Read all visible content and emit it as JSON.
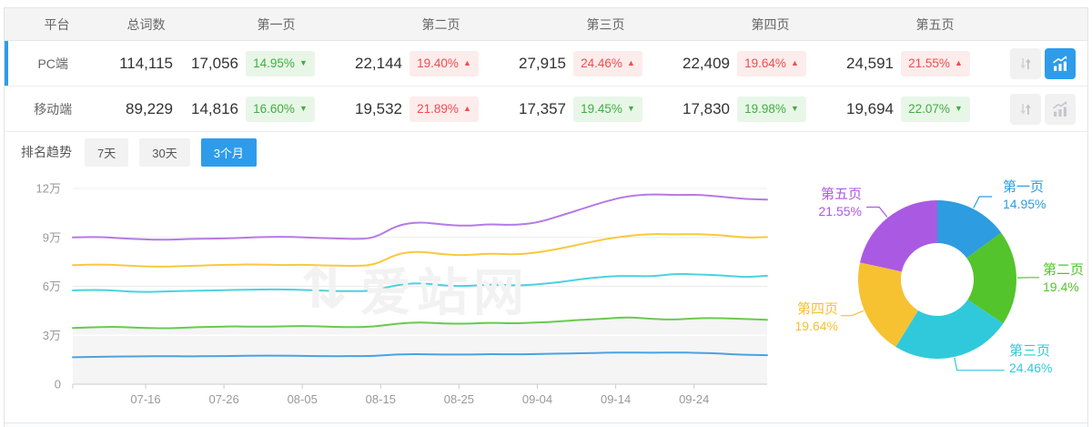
{
  "accent": "#2e9cea",
  "watermark": "爱站网",
  "table": {
    "columns": [
      "平台",
      "总词数",
      "第一页",
      "第二页",
      "第三页",
      "第四页",
      "第五页"
    ],
    "rows": [
      {
        "platform": "PC端",
        "total": "114,115",
        "selected": true,
        "pages": [
          {
            "count": "17,056",
            "pct": "14.95%",
            "dir": "down"
          },
          {
            "count": "22,144",
            "pct": "19.40%",
            "dir": "up"
          },
          {
            "count": "27,915",
            "pct": "24.46%",
            "dir": "up"
          },
          {
            "count": "22,409",
            "pct": "19.64%",
            "dir": "up"
          },
          {
            "count": "24,591",
            "pct": "21.55%",
            "dir": "up"
          }
        ],
        "sort_active": false,
        "chart_active": true
      },
      {
        "platform": "移动端",
        "total": "89,229",
        "selected": false,
        "pages": [
          {
            "count": "14,816",
            "pct": "16.60%",
            "dir": "down"
          },
          {
            "count": "19,532",
            "pct": "21.89%",
            "dir": "up"
          },
          {
            "count": "17,357",
            "pct": "19.45%",
            "dir": "down"
          },
          {
            "count": "17,830",
            "pct": "19.98%",
            "dir": "down"
          },
          {
            "count": "19,694",
            "pct": "22.07%",
            "dir": "down"
          }
        ],
        "sort_active": false,
        "chart_active": false
      }
    ]
  },
  "trend": {
    "label": "排名趋势",
    "tabs": [
      {
        "label": "7天",
        "active": false
      },
      {
        "label": "30天",
        "active": false
      },
      {
        "label": "3个月",
        "active": true
      }
    ]
  },
  "chart_data": [
    {
      "type": "line",
      "title": "排名趋势（3个月）",
      "x_labels": [
        "07-16",
        "07-26",
        "08-05",
        "08-15",
        "08-25",
        "09-04",
        "09-14",
        "09-24"
      ],
      "y_ticks": [
        {
          "label": "0",
          "value": 0
        },
        {
          "label": "3万",
          "value": 3
        },
        {
          "label": "6万",
          "value": 6
        },
        {
          "label": "9万",
          "value": 9
        },
        {
          "label": "12万",
          "value": 12
        }
      ],
      "y_unit": "万",
      "ylim": [
        0,
        12
      ],
      "grid": true,
      "legend": "none",
      "series": [
        {
          "name": "line-1-purple",
          "color": "#b57ae6",
          "values": [
            9.0,
            9.05,
            8.95,
            8.88,
            8.85,
            8.9,
            8.92,
            8.95,
            9.02,
            9.05,
            9.0,
            8.95,
            8.9,
            8.92,
            9.75,
            9.95,
            9.78,
            9.7,
            9.82,
            9.75,
            9.88,
            10.3,
            10.75,
            11.2,
            11.55,
            11.65,
            11.6,
            11.62,
            11.5,
            11.35,
            11.32
          ]
        },
        {
          "name": "line-2-yellow",
          "color": "#f9c840",
          "values": [
            7.3,
            7.35,
            7.3,
            7.22,
            7.2,
            7.25,
            7.3,
            7.32,
            7.35,
            7.3,
            7.32,
            7.28,
            7.25,
            7.28,
            8.0,
            8.15,
            7.95,
            7.9,
            8.02,
            7.95,
            8.05,
            8.3,
            8.6,
            8.9,
            9.1,
            9.22,
            9.18,
            9.2,
            9.15,
            8.98,
            9.02
          ]
        },
        {
          "name": "line-3-cyan",
          "color": "#4cd2de",
          "values": [
            5.75,
            5.8,
            5.72,
            5.65,
            5.68,
            5.72,
            5.75,
            5.78,
            5.8,
            5.82,
            5.78,
            5.72,
            5.7,
            5.72,
            6.1,
            6.22,
            6.05,
            6.0,
            6.12,
            6.05,
            6.1,
            6.25,
            6.45,
            6.6,
            6.65,
            6.6,
            6.78,
            6.72,
            6.68,
            6.55,
            6.65
          ]
        },
        {
          "name": "line-4-green",
          "color": "#69ca4e",
          "area": true,
          "values": [
            3.45,
            3.5,
            3.52,
            3.45,
            3.42,
            3.48,
            3.52,
            3.55,
            3.52,
            3.55,
            3.58,
            3.52,
            3.5,
            3.52,
            3.72,
            3.8,
            3.72,
            3.7,
            3.78,
            3.72,
            3.78,
            3.85,
            3.95,
            4.02,
            4.12,
            4.0,
            3.95,
            4.05,
            4.05,
            4.0,
            3.95
          ]
        },
        {
          "name": "line-5-blue",
          "color": "#4aa2e0",
          "values": [
            1.65,
            1.68,
            1.7,
            1.7,
            1.72,
            1.7,
            1.72,
            1.73,
            1.75,
            1.75,
            1.73,
            1.72,
            1.72,
            1.73,
            1.83,
            1.85,
            1.82,
            1.82,
            1.85,
            1.83,
            1.85,
            1.88,
            1.9,
            1.93,
            1.95,
            1.93,
            1.95,
            1.92,
            1.88,
            1.8,
            1.78
          ]
        }
      ]
    },
    {
      "type": "donut",
      "title": "排名页分布",
      "slices": [
        {
          "label": "第一页",
          "pct_label": "14.95%",
          "value": 14.95,
          "color": "#2d9ce0"
        },
        {
          "label": "第二页",
          "pct_label": "19.4%",
          "value": 19.4,
          "color": "#53c42c"
        },
        {
          "label": "第三页",
          "pct_label": "24.46%",
          "value": 24.46,
          "color": "#30c9db"
        },
        {
          "label": "第四页",
          "pct_label": "19.64%",
          "value": 19.64,
          "color": "#f6c231"
        },
        {
          "label": "第五页",
          "pct_label": "21.55%",
          "value": 21.55,
          "color": "#aa5ae2"
        }
      ]
    }
  ]
}
